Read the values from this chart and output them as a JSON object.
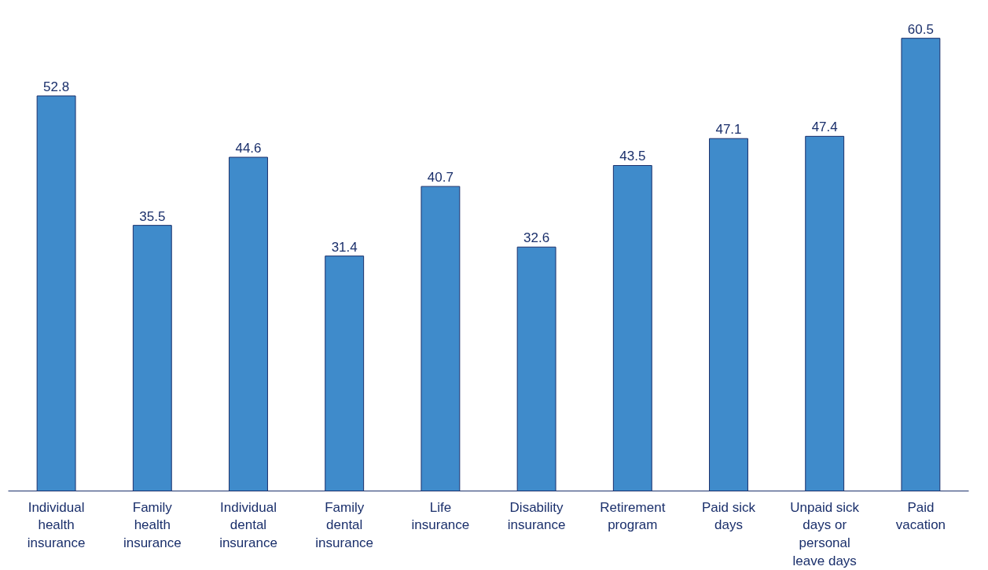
{
  "chart_data": {
    "type": "bar",
    "categories": [
      "Individual health insurance",
      "Family health insurance",
      "Individual dental insurance",
      "Family dental insurance",
      "Life insurance",
      "Disability insurance",
      "Retirement program",
      "Paid sick days",
      "Unpaid sick days or personal leave days",
      "Paid vacation"
    ],
    "values": [
      52.8,
      35.5,
      44.6,
      31.4,
      40.7,
      32.6,
      43.5,
      47.1,
      47.4,
      60.5
    ],
    "color": "#3f8bcb",
    "data_labels": true,
    "tick_labels": "x"
  }
}
